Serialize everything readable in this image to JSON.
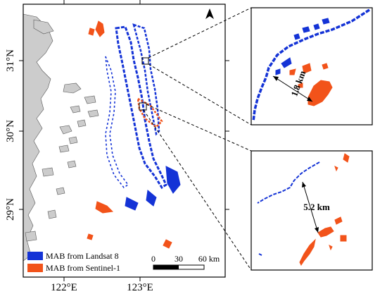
{
  "map": {
    "lat_labels": [
      "31°N",
      "30°N",
      "29°N"
    ],
    "lon_labels": [
      "122°E",
      "123°E"
    ],
    "north_arrow": "north-arrow-icon",
    "scale_bar": {
      "ticks": [
        "0",
        "30",
        "60 km"
      ]
    }
  },
  "legend": {
    "items": [
      {
        "label": "MAB from Landsat 8",
        "color": "#1433d6"
      },
      {
        "label": "MAB from Sentinel-1",
        "color": "#f2531a"
      }
    ]
  },
  "insets": {
    "top": {
      "distance": "1.8 km"
    },
    "bottom": {
      "distance": "5.2 km"
    }
  },
  "colors": {
    "land": "#cccccc",
    "landsat": "#1433d6",
    "sentinel": "#f2531a"
  }
}
